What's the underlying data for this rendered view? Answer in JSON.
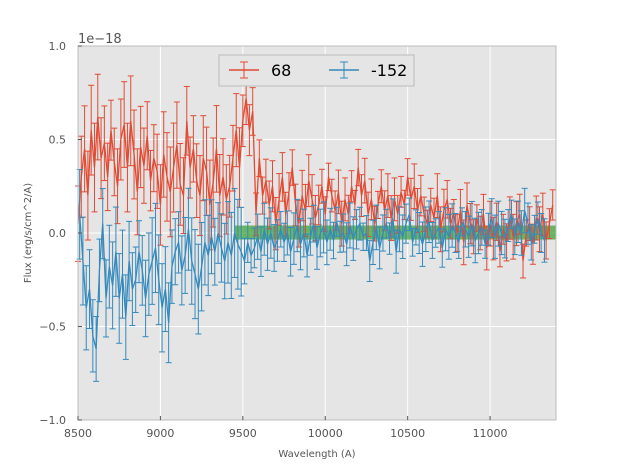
{
  "chart_data": {
    "type": "line",
    "title": "",
    "xlabel": "Wavelength (A)",
    "ylabel": "Flux (erg/s/cm^2/A)",
    "xlim": [
      8500,
      11400
    ],
    "ylim": [
      -1.0,
      1.0
    ],
    "y_offset_text": "1e−18",
    "x_ticks": [
      8500,
      9000,
      9500,
      10000,
      10500,
      11000
    ],
    "x_tick_labels": [
      "8500",
      "9000",
      "9500",
      "10000",
      "10500",
      "11000"
    ],
    "y_ticks": [
      -1.0,
      -0.5,
      0.0,
      0.5,
      1.0
    ],
    "y_tick_labels": [
      "−1.0",
      "−0.5",
      "0.0",
      "0.5",
      "1.0"
    ],
    "grid": true,
    "background": "#e5e5e5",
    "legend": {
      "position": "top-center",
      "columns": 2
    },
    "band": {
      "x_start": 9450,
      "x_end": 11400,
      "y_low": -0.035,
      "y_high": 0.04,
      "color": "#33a02c"
    },
    "series": [
      {
        "name": "68",
        "color": "#e24a33",
        "x_start": 8500,
        "x_step": 20,
        "y": [
          0.05,
          0.3,
          0.45,
          0.2,
          0.55,
          0.35,
          0.62,
          0.4,
          0.48,
          0.3,
          0.55,
          0.38,
          0.25,
          0.5,
          0.58,
          0.35,
          0.6,
          0.42,
          0.22,
          0.46,
          0.36,
          0.52,
          0.28,
          0.4,
          0.33,
          0.15,
          0.42,
          0.3,
          0.22,
          0.35,
          0.47,
          0.26,
          0.2,
          0.6,
          0.35,
          0.45,
          0.28,
          0.2,
          0.4,
          0.33,
          0.15,
          0.27,
          0.45,
          0.2,
          0.3,
          0.18,
          0.25,
          0.4,
          0.55,
          0.35,
          0.6,
          0.72,
          0.55,
          0.65,
          0.1,
          0.4,
          0.2,
          0.28,
          0.15,
          0.25,
          0.05,
          0.18,
          0.3,
          0.1,
          0.22,
          0.35,
          0.15,
          0.05,
          0.2,
          0.12,
          0.28,
          0.18,
          0.08,
          0.15,
          0.25,
          0.1,
          0.3,
          0.2,
          0.12,
          0.22,
          0.05,
          0.18,
          0.1,
          0.25,
          0.15,
          0.35,
          0.2,
          0.28,
          0.1,
          0.18,
          0.05,
          0.15,
          0.25,
          0.12,
          0.2,
          0.08,
          0.18,
          0.1,
          0.22,
          0.15,
          0.3,
          0.18,
          0.25,
          0.12,
          0.2,
          0.1,
          0.05,
          0.15,
          0.08,
          0.2,
          0.02,
          0.12,
          0.18,
          0.05,
          0.1,
          0.0,
          0.12,
          -0.05,
          0.15,
          0.05,
          -0.02,
          0.08,
          0.0,
          0.1,
          -0.08,
          0.05,
          -0.03,
          0.06,
          -0.1,
          0.02,
          -0.05,
          0.08,
          -0.02,
          0.05,
          0.1,
          -0.15,
          0.0,
          0.05,
          -0.06,
          0.08,
          0.02,
          0.1,
          -0.04,
          0.05,
          0.15
        ]
      },
      {
        "name": "-152",
        "color": "#348abd",
        "x_start": 8510,
        "x_step": 20,
        "y": [
          0.1,
          -0.15,
          -0.4,
          -0.3,
          -0.55,
          -0.62,
          -0.2,
          0.05,
          -0.35,
          -0.18,
          -0.28,
          -0.1,
          -0.35,
          -0.22,
          -0.45,
          -0.15,
          -0.3,
          -0.25,
          -0.1,
          -0.2,
          -0.35,
          -0.22,
          -0.15,
          -0.08,
          -0.25,
          -0.4,
          -0.3,
          -0.48,
          -0.18,
          -0.1,
          -0.05,
          -0.2,
          -0.12,
          0.02,
          -0.15,
          -0.22,
          -0.3,
          -0.18,
          -0.05,
          -0.12,
          -0.02,
          -0.1,
          0.0,
          -0.08,
          -0.15,
          -0.05,
          -0.12,
          0.0,
          -0.06,
          -0.1,
          -0.15,
          -0.05,
          -0.12,
          -0.08,
          -0.02,
          -0.1,
          0.02,
          -0.06,
          0.0,
          -0.08,
          -0.04,
          0.02,
          -0.05,
          0.0,
          -0.1,
          -0.03,
          0.04,
          -0.06,
          0.0,
          -0.12,
          -0.02,
          0.05,
          -0.08,
          0.0,
          0.03,
          -0.05,
          0.02,
          -0.04,
          0.06,
          -0.02,
          0.0,
          -0.06,
          0.04,
          -0.03,
          0.02,
          0.05,
          -0.02,
          0.0,
          -0.15,
          -0.05,
          0.03,
          -0.08,
          0.0,
          0.05,
          -0.03,
          0.08,
          -0.1,
          0.02,
          -0.02,
          0.05,
          0.1,
          -0.05,
          0.03,
          0.0,
          -0.06,
          0.02,
          0.06,
          -0.04,
          0.0,
          0.03,
          -0.08,
          0.02,
          -0.02,
          0.04,
          0.0,
          -0.05,
          0.06,
          0.02,
          -0.02,
          0.05,
          -0.04,
          0.0,
          0.03,
          -0.06,
          0.02,
          0.08,
          -0.02,
          0.05,
          0.0,
          -0.03,
          0.04,
          0.1,
          -0.02,
          0.06,
          0.0,
          0.12,
          0.05,
          -0.05,
          0.02,
          0.08,
          0.0,
          -0.04
        ]
      }
    ]
  }
}
